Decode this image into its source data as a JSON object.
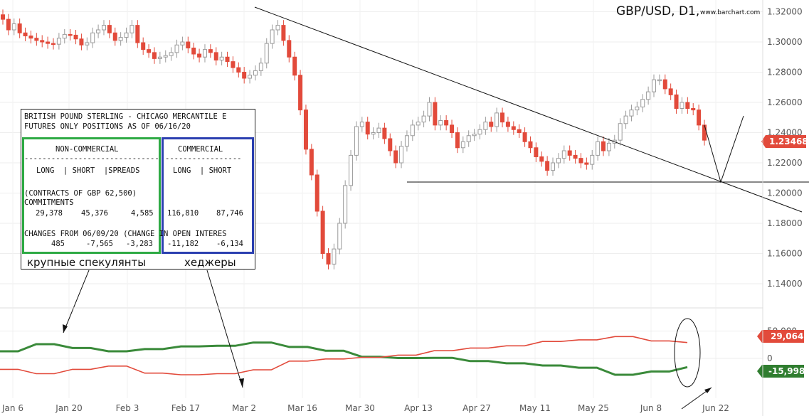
{
  "header": {
    "title": "GBP/USD, D1,",
    "site": "www.barchart.com"
  },
  "colors": {
    "up_candle": "#9a9a9a",
    "down_candle": "#e24a3b",
    "non_commercial_line": "#3a8a3a",
    "commercial_line": "#e24a3b",
    "last_price_badge": "#e24a3b",
    "cot_positive_badge": "#e24a3b",
    "cot_negative_badge": "#2f7d2f",
    "non_commercial_box": "#2eaa44",
    "commercial_box": "#2b3fb0"
  },
  "chart_data": [
    {
      "type": "candlestick",
      "title": "GBP/USD, D1,",
      "ylim": [
        1.13,
        1.325
      ],
      "y_ticks": [
        "1.32000",
        "1.30000",
        "1.28000",
        "1.26000",
        "1.24000",
        "1.22000",
        "1.20000",
        "1.18000",
        "1.16000",
        "1.14000"
      ],
      "x_ticks": [
        "Jan 6",
        "Jan 20",
        "Feb 3",
        "Feb 17",
        "Mar 2",
        "Mar 16",
        "Mar 30",
        "Apr 13",
        "Apr 27",
        "May 11",
        "May 25",
        "Jun 8",
        "Jun 22"
      ],
      "last_price": "1.23468",
      "close": [
        1.315,
        1.308,
        1.312,
        1.306,
        1.304,
        1.3025,
        1.301,
        1.3,
        1.299,
        1.2985,
        1.3025,
        1.305,
        1.3045,
        1.302,
        1.298,
        1.2995,
        1.306,
        1.308,
        1.311,
        1.306,
        1.301,
        1.303,
        1.306,
        1.311,
        1.2995,
        1.295,
        1.293,
        1.289,
        1.29,
        1.291,
        1.293,
        1.298,
        1.3,
        1.296,
        1.292,
        1.29,
        1.295,
        1.293,
        1.288,
        1.29,
        1.287,
        1.283,
        1.28,
        1.276,
        1.278,
        1.281,
        1.286,
        1.299,
        1.308,
        1.311,
        1.301,
        1.29,
        1.278,
        1.255,
        1.229,
        1.212,
        1.188,
        1.16,
        1.153,
        1.163,
        1.18,
        1.205,
        1.225,
        1.244,
        1.247,
        1.239,
        1.24,
        1.243,
        1.236,
        1.228,
        1.22,
        1.231,
        1.238,
        1.245,
        1.247,
        1.251,
        1.26,
        1.245,
        1.248,
        1.245,
        1.24,
        1.23,
        1.234,
        1.238,
        1.239,
        1.242,
        1.247,
        1.244,
        1.253,
        1.247,
        1.244,
        1.242,
        1.24,
        1.234,
        1.23,
        1.224,
        1.221,
        1.215,
        1.22,
        1.223,
        1.228,
        1.225,
        1.223,
        1.22,
        1.219,
        1.225,
        1.234,
        1.228,
        1.233,
        1.235,
        1.246,
        1.251,
        1.255,
        1.257,
        1.262,
        1.267,
        1.275,
        1.275,
        1.269,
        1.265,
        1.256,
        1.26,
        1.256,
        1.255,
        1.245,
        1.235
      ]
    },
    {
      "type": "line",
      "ylim": [
        -30000,
        55000
      ],
      "y_ticks": [
        "50,000",
        "0"
      ],
      "series": [
        {
          "values": [
            13000,
            13000,
            26000,
            26000,
            19000,
            19000,
            13000,
            13000,
            17000,
            17000,
            22000,
            22000,
            23000,
            23000,
            29000,
            29000,
            21000,
            21000,
            14000,
            14000,
            3000,
            3000,
            600,
            600,
            1000,
            1000,
            -5000,
            -5000,
            -9000,
            -9000,
            -13000,
            -13000,
            -17000,
            -17000,
            -30000,
            -30000,
            -24000,
            -24000,
            -15998
          ],
          "last": "-15,998"
        },
        {
          "values": [
            -20000,
            -20000,
            -28000,
            -28000,
            -20000,
            -20000,
            -14000,
            -14000,
            -27000,
            -27000,
            -30000,
            -30000,
            -28000,
            -28000,
            -21000,
            -21000,
            -5000,
            -5000,
            -1000,
            -1000,
            2000,
            2000,
            6000,
            6000,
            14000,
            14000,
            19000,
            19000,
            23000,
            23000,
            31000,
            31000,
            34000,
            34000,
            40000,
            40000,
            32000,
            32000,
            29064
          ],
          "last": "29,064"
        }
      ]
    }
  ],
  "cot_report": {
    "line1": "BRITISH POUND STERLING - CHICAGO MERCANTILE E",
    "line2": "FUTURES ONLY POSITIONS AS OF 06/16/20",
    "non_commercial_header": "NON-COMMERCIAL",
    "non_commercial_sep": "------------------------------",
    "non_commercial_columns": "LONG  | SHORT  |SPREADS",
    "commercial_header": "COMMERCIAL",
    "commercial_sep": "-----------------",
    "commercial_columns": "LONG  | SHORT",
    "contracts_line": "(CONTRACTS OF GBP 62,500)",
    "commitments_label": "COMMITMENTS",
    "nc_long": "29,378",
    "nc_short": "45,376",
    "nc_spreads": "4,585",
    "c_long": "116,810",
    "c_short": "87,746",
    "changes_line": "CHANGES FROM 06/09/20 (CHANGE IN OPEN INTERES",
    "ch_nc_long": "485",
    "ch_nc_short": "-7,565",
    "ch_nc_spreads": "-3,283",
    "ch_c_long": "-11,182",
    "ch_c_short": "-6,134"
  },
  "annotations": {
    "large_speculators": "крупные спекулянты",
    "hedgers": "хеджеры"
  }
}
